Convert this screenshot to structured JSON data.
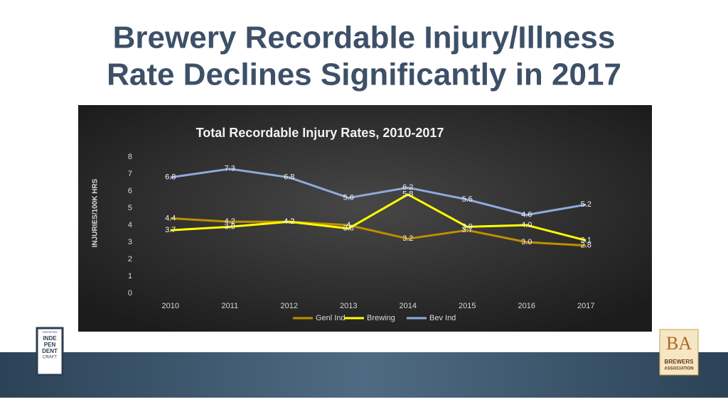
{
  "slide": {
    "title_lines": [
      "Brewery Recordable Injury/Illness",
      "Rate Declines Significantly in 2017"
    ]
  },
  "logos": {
    "left": [
      "CERTIFIED",
      "INDE",
      "PEN",
      "DENT",
      "CRAFT"
    ],
    "right": [
      "BA",
      "BREWERS",
      "ASSOCIATION"
    ]
  },
  "chart_data": {
    "type": "line",
    "title": "Total Recordable Injury Rates, 2010-2017",
    "y_label": "INJURIES/100K HRS",
    "categories": [
      "2010",
      "2011",
      "2012",
      "2013",
      "2014",
      "2015",
      "2016",
      "2017"
    ],
    "series": [
      {
        "name": "Genl Ind",
        "color": "#bf8f00",
        "values": [
          4.4,
          4.2,
          4.2,
          4.0,
          3.2,
          3.7,
          3.0,
          2.8
        ],
        "value_labels": [
          "4.4",
          "4.2",
          "4.2",
          "4",
          "3.2",
          "3.7",
          "3.0",
          "2.8"
        ]
      },
      {
        "name": "Brewing",
        "color": "#ffff00",
        "values": [
          3.7,
          3.9,
          4.2,
          3.8,
          5.8,
          3.9,
          4.0,
          3.1
        ],
        "value_labels": [
          "3.7",
          "3.9",
          "4.2",
          "3.8",
          "5.8",
          "3.9",
          "4.0",
          "3.1"
        ]
      },
      {
        "name": "Bev Ind",
        "color": "#8faadc",
        "values": [
          6.8,
          7.3,
          6.8,
          5.6,
          6.2,
          5.5,
          4.6,
          5.2
        ],
        "value_labels": [
          "6.8",
          "7.3",
          "6.8",
          "5.6",
          "6.2",
          "5.5",
          "4.6",
          "5.2"
        ]
      }
    ],
    "ylim": [
      0,
      8
    ],
    "yticks": [
      0,
      1,
      2,
      3,
      4,
      5,
      6,
      7,
      8
    ],
    "grid": false,
    "legend": "bottom"
  }
}
